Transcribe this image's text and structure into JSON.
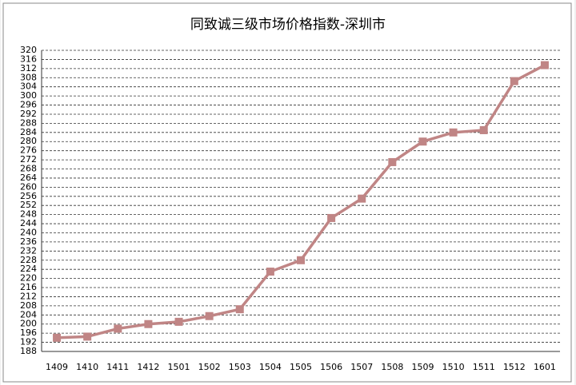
{
  "chart_data": {
    "type": "line",
    "title": "同致诚三级市场价格指数-深圳市",
    "categories": [
      "1409",
      "1410",
      "1411",
      "1412",
      "1501",
      "1502",
      "1503",
      "1504",
      "1505",
      "1506",
      "1507",
      "1508",
      "1509",
      "1510",
      "1511",
      "1512",
      "1601"
    ],
    "values": [
      194,
      194.5,
      198,
      200,
      201,
      203.5,
      206.5,
      223,
      228,
      246.5,
      255,
      271,
      280,
      284,
      285,
      306.5,
      313.5
    ],
    "color": "#c08585",
    "ylim": [
      188,
      320
    ],
    "yticks": [
      188,
      192,
      196,
      200,
      204,
      208,
      212,
      216,
      220,
      224,
      228,
      232,
      236,
      240,
      244,
      248,
      252,
      256,
      260,
      264,
      268,
      272,
      276,
      280,
      284,
      288,
      292,
      296,
      300,
      304,
      308,
      312,
      316,
      320
    ],
    "grid": true
  }
}
